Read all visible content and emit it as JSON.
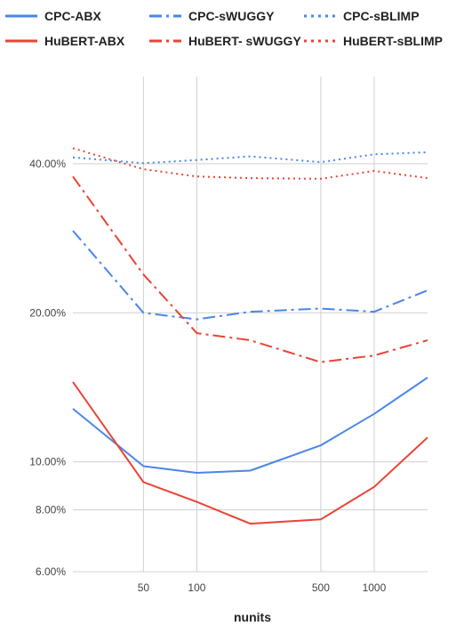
{
  "chart_data": {
    "type": "line",
    "xlabel": "nunits",
    "ylabel": "",
    "x_scale": "log",
    "y_scale": "log",
    "xlim": [
      20,
      2000
    ],
    "ylim": [
      0.06,
      0.6
    ],
    "grid": true,
    "legend_position": "top",
    "x": [
      20,
      50,
      100,
      200,
      500,
      1000,
      2000
    ],
    "x_ticks": [
      {
        "value": 50,
        "label": "50"
      },
      {
        "value": 100,
        "label": "100"
      },
      {
        "value": 500,
        "label": "500"
      },
      {
        "value": 1000,
        "label": "1000"
      }
    ],
    "y_ticks": [
      {
        "value": 0.06,
        "label": "6.00%"
      },
      {
        "value": 0.08,
        "label": "8.00%"
      },
      {
        "value": 0.1,
        "label": "10.00%"
      },
      {
        "value": 0.2,
        "label": "20.00%"
      },
      {
        "value": 0.4,
        "label": "40.00%"
      }
    ],
    "series": [
      {
        "name": "CPC-ABX",
        "color": "#4a86e8",
        "style": "solid",
        "values": [
          0.128,
          0.098,
          0.095,
          0.096,
          0.108,
          0.125,
          0.148
        ]
      },
      {
        "name": "CPC-sWUGGY",
        "color": "#4a86e8",
        "style": "dashdot",
        "values": [
          0.293,
          0.2,
          0.194,
          0.201,
          0.204,
          0.201,
          0.222
        ]
      },
      {
        "name": "CPC-sBLIMP",
        "color": "#4a86e8",
        "style": "dotted",
        "values": [
          0.412,
          0.401,
          0.407,
          0.414,
          0.403,
          0.418,
          0.422
        ]
      },
      {
        "name": "HuBERT-ABX",
        "color": "#ea4335",
        "style": "solid",
        "values": [
          0.145,
          0.091,
          0.083,
          0.075,
          0.0765,
          0.089,
          0.112
        ]
      },
      {
        "name": "HuBERT- sWUGGY",
        "color": "#ea4335",
        "style": "dashdot",
        "values": [
          0.377,
          0.239,
          0.182,
          0.176,
          0.159,
          0.164,
          0.176
        ]
      },
      {
        "name": "HuBERT-sBLIMP",
        "color": "#ea4335",
        "style": "dotted",
        "values": [
          0.43,
          0.39,
          0.377,
          0.374,
          0.373,
          0.387,
          0.374
        ]
      }
    ]
  }
}
